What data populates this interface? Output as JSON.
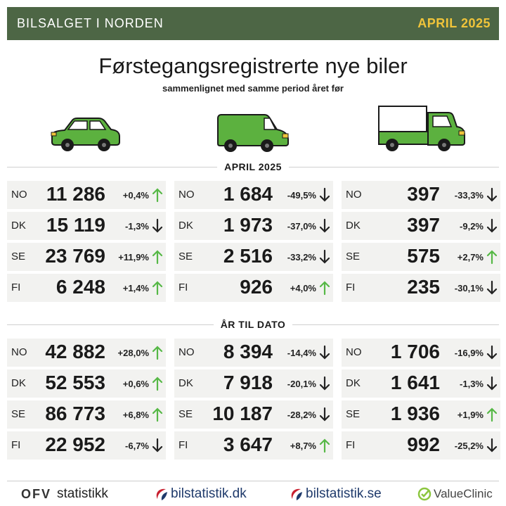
{
  "header": {
    "left": "BILSALGET I NORDEN",
    "right": "APRIL 2025"
  },
  "title": "Førstegangsregistrerte nye biler",
  "subtitle": "sammenlignet med samme period året før",
  "colors": {
    "header_bg": "#4d6645",
    "accent": "#f0c43a",
    "vehicle_green": "#5cb13f",
    "arrow_up": "#56b846",
    "arrow_down": "#222222"
  },
  "vehicles": [
    "car-icon",
    "van-icon",
    "truck-icon"
  ],
  "sections": [
    {
      "label": "APRIL 2025",
      "columns": [
        [
          {
            "code": "NO",
            "value": "11 286",
            "pct": "+0,4%",
            "dir": "up"
          },
          {
            "code": "DK",
            "value": "15 119",
            "pct": "-1,3%",
            "dir": "down"
          },
          {
            "code": "SE",
            "value": "23 769",
            "pct": "+11,9%",
            "dir": "up"
          },
          {
            "code": "FI",
            "value": "6 248",
            "pct": "+1,4%",
            "dir": "up"
          }
        ],
        [
          {
            "code": "NO",
            "value": "1 684",
            "pct": "-49,5%",
            "dir": "down"
          },
          {
            "code": "DK",
            "value": "1 973",
            "pct": "-37,0%",
            "dir": "down"
          },
          {
            "code": "SE",
            "value": "2 516",
            "pct": "-33,2%",
            "dir": "down"
          },
          {
            "code": "FI",
            "value": "926",
            "pct": "+4,0%",
            "dir": "up"
          }
        ],
        [
          {
            "code": "NO",
            "value": "397",
            "pct": "-33,3%",
            "dir": "down"
          },
          {
            "code": "DK",
            "value": "397",
            "pct": "-9,2%",
            "dir": "down"
          },
          {
            "code": "SE",
            "value": "575",
            "pct": "+2,7%",
            "dir": "up"
          },
          {
            "code": "FI",
            "value": "235",
            "pct": "-30,1%",
            "dir": "down"
          }
        ]
      ]
    },
    {
      "label": "ÅR TIL DATO",
      "columns": [
        [
          {
            "code": "NO",
            "value": "42 882",
            "pct": "+28,0%",
            "dir": "up"
          },
          {
            "code": "DK",
            "value": "52 553",
            "pct": "+0,6%",
            "dir": "up"
          },
          {
            "code": "SE",
            "value": "86 773",
            "pct": "+6,8%",
            "dir": "up"
          },
          {
            "code": "FI",
            "value": "22 952",
            "pct": "-6,7%",
            "dir": "down"
          }
        ],
        [
          {
            "code": "NO",
            "value": "8 394",
            "pct": "-14,4%",
            "dir": "down"
          },
          {
            "code": "DK",
            "value": "7 918",
            "pct": "-20,1%",
            "dir": "down"
          },
          {
            "code": "SE",
            "value": "10 187",
            "pct": "-28,2%",
            "dir": "down"
          },
          {
            "code": "FI",
            "value": "3 647",
            "pct": "+8,7%",
            "dir": "up"
          }
        ],
        [
          {
            "code": "NO",
            "value": "1 706",
            "pct": "-16,9%",
            "dir": "down"
          },
          {
            "code": "DK",
            "value": "1 641",
            "pct": "-1,3%",
            "dir": "down"
          },
          {
            "code": "SE",
            "value": "1 936",
            "pct": "+1,9%",
            "dir": "up"
          },
          {
            "code": "FI",
            "value": "992",
            "pct": "-25,2%",
            "dir": "down"
          }
        ]
      ]
    }
  ],
  "footer": {
    "ofv_mark": "OFV",
    "ofv_text": "statistikk",
    "dk": {
      "name": "bilstatistik",
      "tld": ".dk"
    },
    "se": {
      "name": "bilstatistik",
      "tld": ".se"
    },
    "valueclinic": "ValueClinic"
  }
}
